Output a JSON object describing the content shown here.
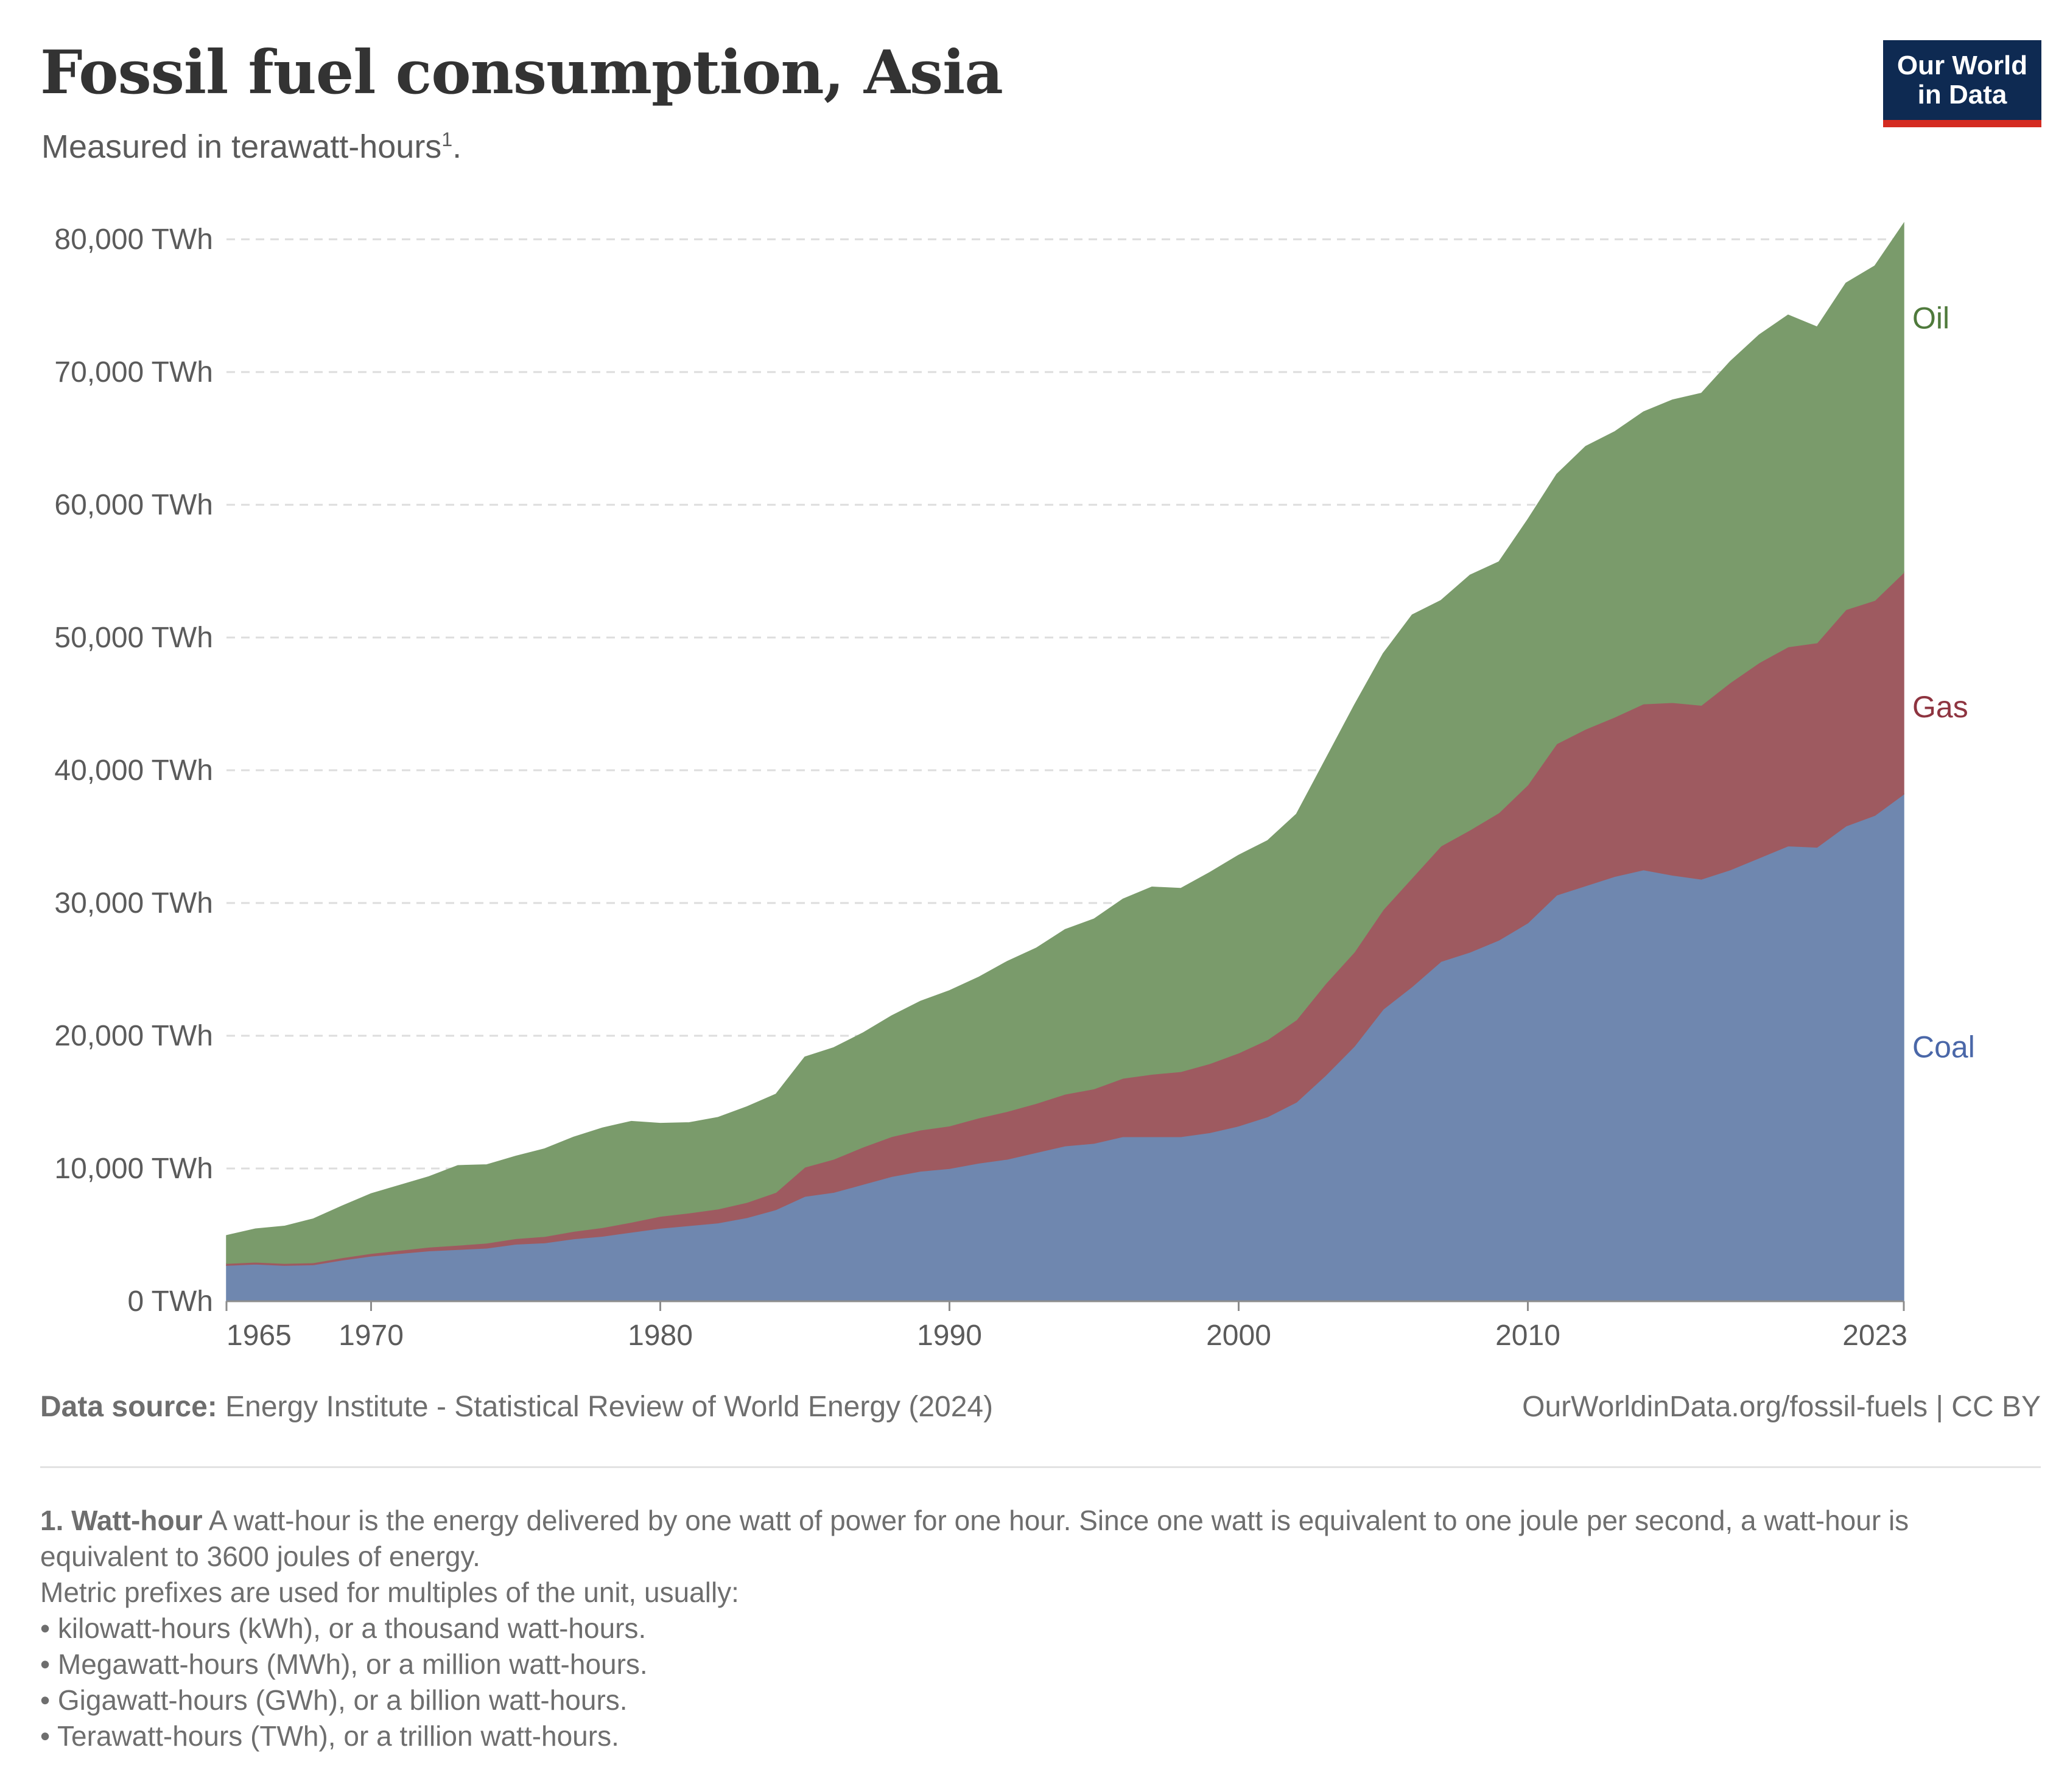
{
  "header": {
    "title": "Fossil fuel consumption, Asia",
    "subtitle": "Measured in terawatt-hours",
    "subtitle_marker": "1",
    "subtitle_end": "."
  },
  "logo": {
    "line1": "Our World",
    "line2": "in Data"
  },
  "footer": {
    "source_label": "Data source:",
    "source_text": "Energy Institute - Statistical Review of World Energy (2024)",
    "url": "OurWorldinData.org/fossil-fuels | CC BY"
  },
  "notes": {
    "term": "1. Watt-hour",
    "definition": "A watt-hour is the energy delivered by one watt of power for one hour. Since one watt is equivalent to one joule per second, a watt-hour is equivalent to 3600 joules of energy.",
    "prefix_intro": "Metric prefixes are used for multiples of the unit, usually:",
    "items": [
      "• kilowatt-hours (kWh), or a thousand watt-hours.",
      "• Megawatt-hours (MWh), or a million watt-hours.",
      "• Gigawatt-hours (GWh), or a billion watt-hours.",
      "• Terawatt-hours (TWh), or a trillion watt-hours."
    ]
  },
  "chart_data": {
    "type": "area",
    "stacked": true,
    "title": "Fossil fuel consumption, Asia",
    "subtitle": "Measured in terawatt-hours",
    "xlim": [
      1965,
      2023
    ],
    "ylim": [
      0,
      80000
    ],
    "x_ticks": [
      1965,
      1970,
      1980,
      1990,
      2000,
      2010,
      2023
    ],
    "y_ticks": [
      0,
      10000,
      20000,
      30000,
      40000,
      50000,
      60000,
      70000,
      80000
    ],
    "y_tick_labels": [
      "0 TWh",
      "10,000 TWh",
      "20,000 TWh",
      "30,000 TWh",
      "40,000 TWh",
      "50,000 TWh",
      "60,000 TWh",
      "70,000 TWh",
      "80,000 TWh"
    ],
    "grid": "horizontal dashed",
    "legend": "labels at right end of each area",
    "x": [
      1965,
      1966,
      1967,
      1968,
      1969,
      1970,
      1971,
      1972,
      1973,
      1974,
      1975,
      1976,
      1977,
      1978,
      1979,
      1980,
      1981,
      1982,
      1983,
      1984,
      1985,
      1986,
      1987,
      1988,
      1989,
      1990,
      1991,
      1992,
      1993,
      1994,
      1995,
      1996,
      1997,
      1998,
      1999,
      2000,
      2001,
      2002,
      2003,
      2004,
      2005,
      2006,
      2007,
      2008,
      2009,
      2010,
      2011,
      2012,
      2013,
      2014,
      2015,
      2016,
      2017,
      2018,
      2019,
      2020,
      2021,
      2022,
      2023
    ],
    "series": [
      {
        "name": "Coal",
        "color": "#6f87af",
        "label_color": "#4a67a8",
        "values": [
          2700,
          2800,
          2700,
          2750,
          3100,
          3400,
          3600,
          3800,
          3900,
          4000,
          4300,
          4400,
          4700,
          4900,
          5200,
          5500,
          5700,
          5900,
          6300,
          6900,
          7900,
          8200,
          8800,
          9400,
          9800,
          10000,
          10400,
          10700,
          11200,
          11700,
          11900,
          12400,
          12400,
          12400,
          12700,
          13200,
          13900,
          15000,
          17000,
          19200,
          22000,
          23700,
          25600,
          26300,
          27200,
          28500,
          30600,
          31300,
          32000,
          32500,
          32100,
          31800,
          32500,
          33400,
          34300,
          34200,
          35800,
          36600,
          38200
        ]
      },
      {
        "name": "Gas",
        "color": "#9e5a60",
        "label_color": "#8e3440",
        "values": [
          150,
          150,
          150,
          150,
          180,
          200,
          240,
          280,
          320,
          380,
          420,
          480,
          560,
          650,
          750,
          900,
          950,
          1050,
          1150,
          1300,
          2200,
          2500,
          2800,
          3000,
          3100,
          3200,
          3400,
          3600,
          3700,
          3900,
          4100,
          4400,
          4700,
          4900,
          5200,
          5500,
          5800,
          6200,
          6900,
          7100,
          7500,
          8200,
          8700,
          9200,
          9600,
          10400,
          11400,
          11800,
          12000,
          12500,
          13000,
          13100,
          14100,
          14700,
          15000,
          15400,
          16300,
          16200,
          16700
        ]
      },
      {
        "name": "Oil",
        "color": "#7a9b6b",
        "label_color": "#4f7a3c",
        "values": [
          2100,
          2500,
          2800,
          3300,
          3900,
          4500,
          4900,
          5300,
          6000,
          5900,
          6200,
          6600,
          7100,
          7500,
          7600,
          7000,
          6800,
          6900,
          7200,
          7400,
          8300,
          8400,
          8600,
          9100,
          9700,
          10200,
          10600,
          11300,
          11700,
          12400,
          12800,
          13500,
          14100,
          13800,
          14400,
          14900,
          15000,
          15500,
          16900,
          18600,
          19300,
          19800,
          18500,
          19200,
          18900,
          20000,
          20300,
          21300,
          21500,
          22000,
          22800,
          23500,
          24200,
          24700,
          25000,
          23800,
          24600,
          25200,
          26300
        ]
      }
    ]
  }
}
